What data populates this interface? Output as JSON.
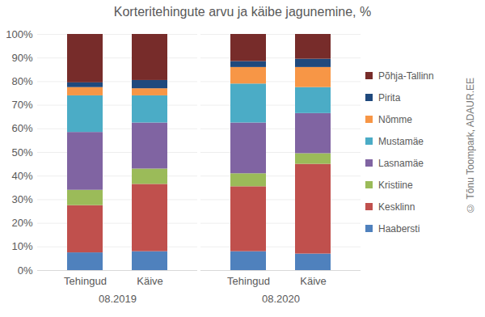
{
  "chart_data": {
    "type": "bar",
    "stacked": true,
    "title": "Korteritehingute arvu ja käibe jagunemine, %",
    "categories": [
      "Tehingud",
      "Käive",
      "Tehingud",
      "Käive"
    ],
    "category_groups": [
      "08.2019",
      "08.2019",
      "08.2020",
      "08.2020"
    ],
    "series": [
      {
        "name": "Haabersti",
        "color": "#4f81bd",
        "values": [
          7.5,
          8,
          8,
          7
        ]
      },
      {
        "name": "Kesklinn",
        "color": "#c0504d",
        "values": [
          20,
          28.5,
          27.5,
          38
        ]
      },
      {
        "name": "Kristiine",
        "color": "#9bbb59",
        "values": [
          6.5,
          6.5,
          5.5,
          4.5
        ]
      },
      {
        "name": "Lasnamäe",
        "color": "#8064a2",
        "values": [
          24.5,
          19.5,
          21.5,
          17
        ]
      },
      {
        "name": "Mustamäe",
        "color": "#4bacc6",
        "values": [
          15.5,
          11.5,
          16.5,
          11
        ]
      },
      {
        "name": "Nõmme",
        "color": "#f79646",
        "values": [
          3.5,
          3,
          7,
          8.5
        ]
      },
      {
        "name": "Pirita",
        "color": "#1f497d",
        "values": [
          2,
          3.5,
          2.5,
          3.5
        ]
      },
      {
        "name": "Põhja-Tallinn",
        "color": "#772c2a",
        "values": [
          20.5,
          19.5,
          11.5,
          10.5
        ]
      }
    ],
    "ylim": [
      0,
      100
    ],
    "yticks": [
      {
        "value": 0,
        "label": "0%"
      },
      {
        "value": 10,
        "label": "10%"
      },
      {
        "value": 20,
        "label": "20%"
      },
      {
        "value": 30,
        "label": "30%"
      },
      {
        "value": 40,
        "label": "40%"
      },
      {
        "value": 50,
        "label": "50%"
      },
      {
        "value": 60,
        "label": "60%"
      },
      {
        "value": 70,
        "label": "70%"
      },
      {
        "value": 80,
        "label": "80%"
      },
      {
        "value": 90,
        "label": "90%"
      },
      {
        "value": 100,
        "label": "100%"
      }
    ],
    "grid": true,
    "legend": "right",
    "annotations": [
      "© Tõnu Toompark, ADAUR.EE"
    ]
  }
}
